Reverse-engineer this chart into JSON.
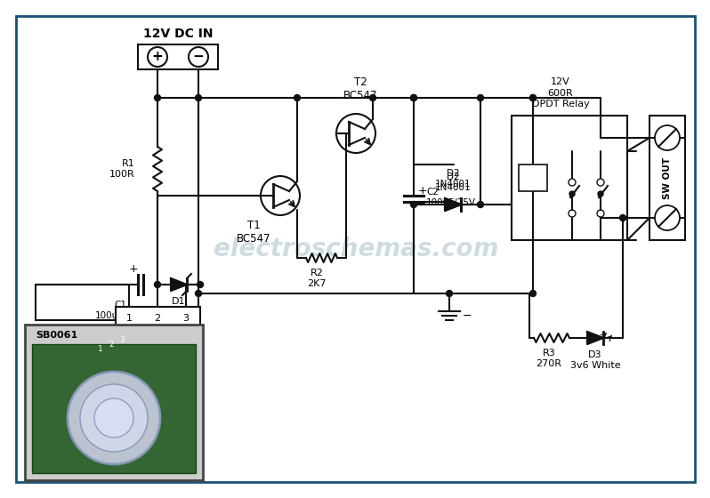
{
  "bg": "white",
  "border_color": "#1a5276",
  "wire_color": "#111111",
  "lw": 1.5,
  "watermark": "electroschemas.com",
  "wm_color": "#aec6cf",
  "dc_label": "12V DC IN",
  "t1_label": "T1\nBC547",
  "t2_label": "T2\nBC547",
  "c2_label": "C2\n100uF/25V",
  "d2_label": "D2\n1N4001",
  "r1_label": "R1\n100R",
  "r2_label": "R2\n2K7",
  "r3_label": "R3\n270R",
  "d1_label": "D1\n12V",
  "c1_label": "C1\n100uF/25V",
  "d3_label": "D3\n3v6 White",
  "relay_label": "12V\n600R\nDPDT Relay",
  "sw_label": "SW OUT",
  "sb_label": "SB0061",
  "neg_label": "−"
}
